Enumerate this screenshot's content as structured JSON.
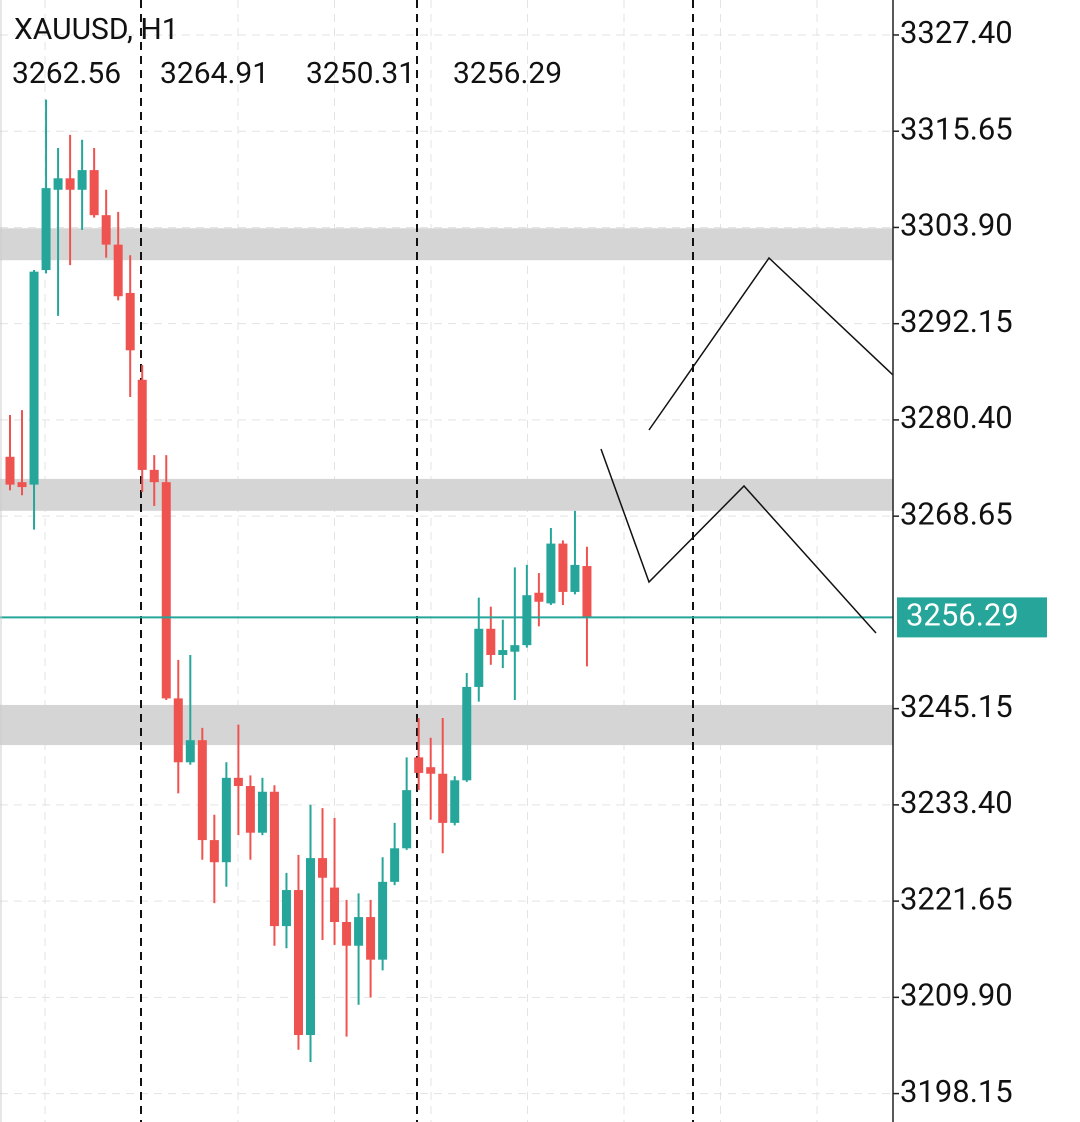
{
  "chart_data": {
    "type": "candlestick",
    "title": "XAUUSD, H1",
    "ohlc": [
      3262.56,
      3264.91,
      3250.31,
      3256.29
    ],
    "up_color": "#26a69a",
    "down_color": "#ef5350",
    "ylim": [
      3194.68,
      3331.67
    ],
    "yticks": [
      {
        "value": 3327.4,
        "label": "3327.40"
      },
      {
        "value": 3315.65,
        "label": "3315.65"
      },
      {
        "value": 3303.9,
        "label": "3303.90"
      },
      {
        "value": 3292.15,
        "label": "3292.15"
      },
      {
        "value": 3280.4,
        "label": "3280.40"
      },
      {
        "value": 3268.65,
        "label": "3268.65"
      },
      {
        "value": 3245.15,
        "label": "3245.15"
      },
      {
        "value": 3233.4,
        "label": "3233.40"
      },
      {
        "value": 3221.65,
        "label": "3221.65"
      },
      {
        "value": 3209.9,
        "label": "3209.90"
      },
      {
        "value": 3198.15,
        "label": "3198.15"
      }
    ],
    "grid": true,
    "last_price": 3256.29,
    "last_price_color": "#26a69a",
    "zones": [
      [
        3299.9,
        3303.8
      ],
      [
        3269.3,
        3273.2
      ],
      [
        3240.7,
        3245.6
      ]
    ],
    "open": [
      3275.9,
      3272.8,
      3272.5,
      3298.7,
      3308.5,
      3309.9,
      3308.5,
      3310.9,
      3305.4,
      3301.8,
      3295.9,
      3285.3,
      3274.3,
      3272.8,
      3246.4,
      3238.6,
      3241.3,
      3229.1,
      3226.4,
      3236.7,
      3235.7,
      3230.0,
      3235.0,
      3218.6,
      3223.0,
      3205.3,
      3226.9,
      3223.3,
      3219.1,
      3216.2,
      3219.7,
      3214.5,
      3224.0,
      3228.1,
      3239.2,
      3238.0,
      3237.2,
      3231.2,
      3236.4,
      3247.8,
      3254.9,
      3251.7,
      3252.1,
      3252.9,
      3259.3,
      3258.0,
      3265.3,
      3259.4,
      3262.56
    ],
    "high": [
      3281.0,
      3281.6,
      3298.7,
      3319.5,
      3313.6,
      3315.2,
      3314.6,
      3313.6,
      3308.5,
      3305.8,
      3300.5,
      3287.1,
      3276.1,
      3276.1,
      3251.1,
      3251.7,
      3242.8,
      3232.2,
      3238.6,
      3243.2,
      3237.0,
      3236.7,
      3235.8,
      3225.1,
      3227.3,
      3233.4,
      3233.0,
      3231.8,
      3221.8,
      3222.6,
      3221.8,
      3227.0,
      3231.2,
      3239.2,
      3244.0,
      3241.6,
      3244.0,
      3236.9,
      3249.5,
      3258.7,
      3257.6,
      3256.0,
      3262.4,
      3262.7,
      3261.7,
      3267.2,
      3265.7,
      3269.3,
      3264.91
    ],
    "low": [
      3271.8,
      3271.2,
      3267.0,
      3298.3,
      3293.1,
      3299.3,
      3303.6,
      3305.1,
      3300.2,
      3295.0,
      3283.2,
      3271.6,
      3269.9,
      3246.2,
      3234.8,
      3238.3,
      3226.7,
      3221.4,
      3223.4,
      3229.7,
      3226.7,
      3229.7,
      3216.2,
      3215.9,
      3203.5,
      3202.0,
      3216.9,
      3216.3,
      3205.1,
      3209.0,
      3209.9,
      3213.2,
      3223.6,
      3227.9,
      3235.2,
      3231.6,
      3227.5,
      3230.9,
      3236.2,
      3246.0,
      3250.5,
      3250.1,
      3246.2,
      3252.6,
      3255.2,
      3257.8,
      3257.8,
      3259.1,
      3250.31
    ],
    "close": [
      3272.5,
      3272.2,
      3298.5,
      3308.7,
      3309.9,
      3308.5,
      3310.9,
      3305.4,
      3301.8,
      3295.5,
      3288.9,
      3274.3,
      3272.8,
      3246.4,
      3238.6,
      3241.3,
      3229.1,
      3226.4,
      3236.7,
      3235.7,
      3230.0,
      3235.0,
      3218.6,
      3223.0,
      3205.3,
      3226.9,
      3224.5,
      3219.1,
      3216.2,
      3219.7,
      3214.5,
      3224.0,
      3228.1,
      3235.2,
      3237.3,
      3237.2,
      3231.2,
      3236.4,
      3247.8,
      3254.9,
      3251.7,
      3252.3,
      3252.9,
      3259.0,
      3258.2,
      3265.3,
      3259.4,
      3262.7,
      3256.29
    ]
  }
}
